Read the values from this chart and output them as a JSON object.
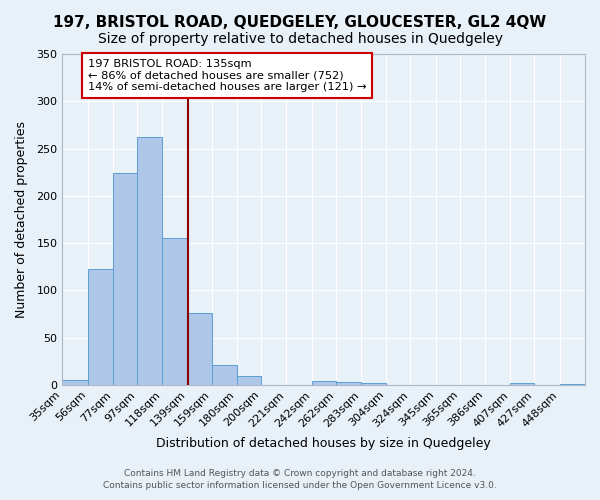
{
  "title": "197, BRISTOL ROAD, QUEDGELEY, GLOUCESTER, GL2 4QW",
  "subtitle": "Size of property relative to detached houses in Quedgeley",
  "xlabel": "Distribution of detached houses by size in Quedgeley",
  "ylabel": "Number of detached properties",
  "footer_line1": "Contains HM Land Registry data © Crown copyright and database right 2024.",
  "footer_line2": "Contains public sector information licensed under the Open Government Licence v3.0.",
  "bin_edges": [
    35,
    56,
    77,
    97,
    118,
    139,
    159,
    180,
    200,
    221,
    242,
    262,
    283,
    304,
    324,
    345,
    365,
    386,
    407,
    427,
    448,
    469
  ],
  "bin_labels": [
    "35sqm",
    "56sqm",
    "77sqm",
    "97sqm",
    "118sqm",
    "139sqm",
    "159sqm",
    "180sqm",
    "200sqm",
    "221sqm",
    "242sqm",
    "262sqm",
    "283sqm",
    "304sqm",
    "324sqm",
    "345sqm",
    "365sqm",
    "386sqm",
    "407sqm",
    "427sqm",
    "448sqm"
  ],
  "counts": [
    5,
    123,
    224,
    262,
    155,
    76,
    21,
    9,
    0,
    0,
    4,
    3,
    2,
    0,
    0,
    0,
    0,
    0,
    2,
    0,
    1
  ],
  "bar_color": "#aec6e8",
  "bar_edge_color": "#5a9fd4",
  "vline_x": 139,
  "vline_color": "#8b0000",
  "annotation_title": "197 BRISTOL ROAD: 135sqm",
  "annotation_line2": "← 86% of detached houses are smaller (752)",
  "annotation_line3": "14% of semi-detached houses are larger (121) →",
  "annotation_box_color": "#ffffff",
  "annotation_edge_color": "#cc0000",
  "ylim": [
    0,
    350
  ],
  "yticks": [
    0,
    50,
    100,
    150,
    200,
    250,
    300,
    350
  ],
  "bg_color": "#e8f0f8",
  "grid_color": "#ffffff",
  "title_fontsize": 11,
  "subtitle_fontsize": 10,
  "axis_label_fontsize": 9,
  "tick_fontsize": 8
}
